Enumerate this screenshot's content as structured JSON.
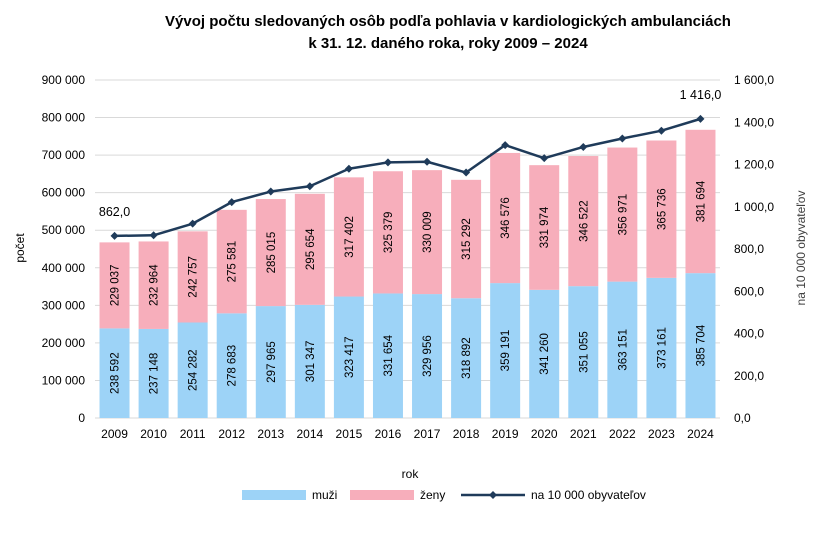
{
  "chart_data": {
    "type": "bar",
    "title": "Vývoj počtu sledovaných osôb podľa pohlavia v kardiologických ambulanciách",
    "subtitle": "k 31. 12. daného roka, roky 2009 – 2024",
    "xlabel": "rok",
    "ylabel": "počet",
    "y2label": "na 10 000 obyvateľov",
    "ylim": [
      0,
      900000
    ],
    "y2lim": [
      0,
      1600
    ],
    "yticks": [
      "0",
      "100 000",
      "200 000",
      "300 000",
      "400 000",
      "500 000",
      "600 000",
      "700 000",
      "800 000",
      "900 000"
    ],
    "y2ticks": [
      "0,0",
      "200,0",
      "400,0",
      "600,0",
      "800,0",
      "1 000,0",
      "1 200,0",
      "1 400,0",
      "1 600,0"
    ],
    "categories": [
      "2009",
      "2010",
      "2011",
      "2012",
      "2013",
      "2014",
      "2015",
      "2016",
      "2017",
      "2018",
      "2019",
      "2020",
      "2021",
      "2022",
      "2023",
      "2024"
    ],
    "grid": true,
    "legend_position": "bottom",
    "series": [
      {
        "name": "muži",
        "kind": "stacked-bar",
        "color": "#9dd3f7",
        "values": [
          238592,
          237148,
          254282,
          278683,
          297965,
          301347,
          323417,
          331654,
          329956,
          318892,
          359191,
          341260,
          351055,
          363151,
          373161,
          385704
        ],
        "labels": [
          "238 592",
          "237 148",
          "254 282",
          "278 683",
          "297 965",
          "301 347",
          "323 417",
          "331 654",
          "329 956",
          "318 892",
          "359 191",
          "341 260",
          "351 055",
          "363 151",
          "373 161",
          "385 704"
        ]
      },
      {
        "name": "ženy",
        "kind": "stacked-bar",
        "color": "#f7aebb",
        "values": [
          229037,
          232964,
          242757,
          275581,
          285015,
          295654,
          317402,
          325379,
          330009,
          315292,
          346576,
          331974,
          346522,
          356971,
          365736,
          381694
        ],
        "labels": [
          "229 037",
          "232 964",
          "242 757",
          "275 581",
          "285 015",
          "295 654",
          "317 402",
          "325 379",
          "330 009",
          "315 292",
          "346 576",
          "331 974",
          "346 522",
          "356 971",
          "365 736",
          "381 694"
        ]
      },
      {
        "name": "na 10 000 obyvateľov",
        "kind": "line",
        "axis": "right",
        "color": "#1f3b5a",
        "values": [
          862.0,
          865,
          920,
          1022,
          1072,
          1097,
          1180,
          1210,
          1213,
          1162,
          1292,
          1230,
          1283,
          1323,
          1360,
          1416.0
        ]
      }
    ],
    "annotations": [
      {
        "index": 0,
        "text": "862,0"
      },
      {
        "index": 15,
        "text": "1 416,0"
      }
    ]
  }
}
